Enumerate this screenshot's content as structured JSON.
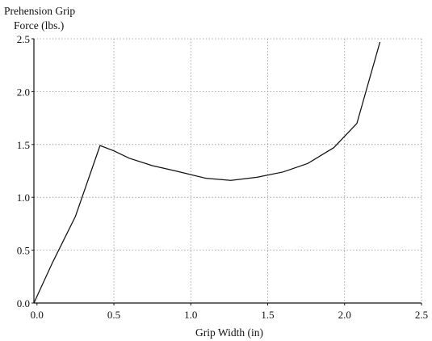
{
  "chart_data": {
    "type": "line",
    "title": "",
    "xlabel": "Grip Width (in)",
    "ylabel_lines": [
      "Prehension Grip",
      "Force (lbs.)"
    ],
    "xlim": [
      -0.02,
      2.5
    ],
    "ylim": [
      0.0,
      2.5
    ],
    "x_ticks": [
      0.0,
      0.5,
      1.0,
      1.5,
      2.0,
      2.5
    ],
    "y_ticks": [
      0.0,
      0.5,
      1.0,
      1.5,
      2.0,
      2.5
    ],
    "x_tick_labels": [
      "0.0",
      "0.5",
      "1.0",
      "1.5",
      "2.0",
      "2.5"
    ],
    "y_tick_labels": [
      "0.0",
      "0.5",
      "1.0",
      "1.5",
      "2.0",
      "2.5"
    ],
    "grid": true,
    "legend": "none",
    "series": [
      {
        "x": [
          -0.02,
          0.1,
          0.25,
          0.41,
          0.5,
          0.6,
          0.75,
          0.9,
          1.1,
          1.26,
          1.43,
          1.6,
          1.76,
          1.93,
          2.08,
          2.23
        ],
        "y": [
          0.0,
          0.38,
          0.82,
          1.49,
          1.44,
          1.37,
          1.3,
          1.25,
          1.18,
          1.16,
          1.19,
          1.24,
          1.32,
          1.47,
          1.7,
          2.47
        ],
        "color": "#111111"
      }
    ]
  }
}
